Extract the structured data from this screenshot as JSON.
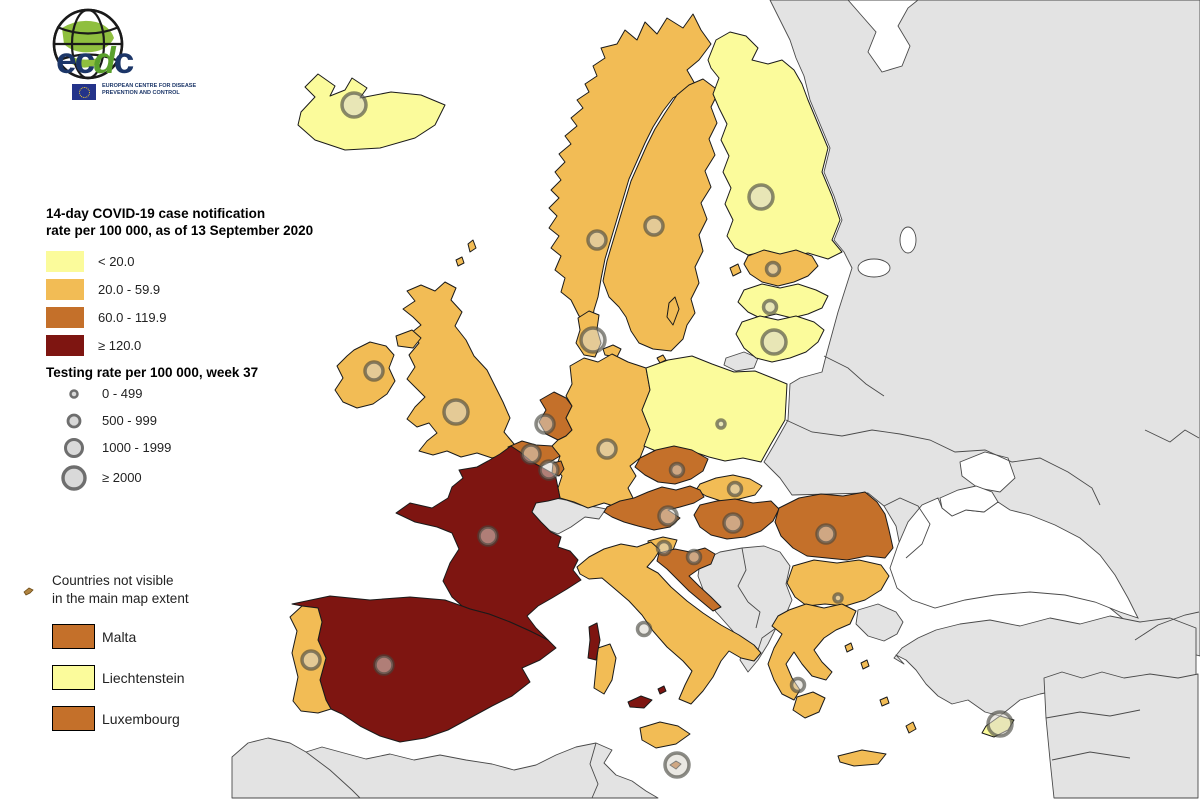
{
  "logo": {
    "wordmark_ec": "ec",
    "wordmark_d": "d",
    "wordmark_c": "c",
    "subtitle": "European Centre for Disease Prevention and Control"
  },
  "legend": {
    "title_line1": "14-day COVID-19 case notification",
    "title_line2": "rate per 100 000, as of 13 September 2020",
    "rate_classes": [
      {
        "key": "lt20",
        "label": "< 20.0",
        "color": "#FBFB9B"
      },
      {
        "key": "r20_59",
        "label": "20.0 - 59.9",
        "color": "#F2BC55"
      },
      {
        "key": "r60_119",
        "label": "60.0 - 119.9",
        "color": "#C4702A"
      },
      {
        "key": "gte120",
        "label": "≥ 120.0",
        "color": "#7E1511"
      }
    ],
    "testing_title": "Testing rate per 100 000, week 37",
    "testing_classes": [
      {
        "key": "t0",
        "label": "0 - 499",
        "radius": 3.5
      },
      {
        "key": "t500",
        "label": "500 - 999",
        "radius": 6
      },
      {
        "key": "t1000",
        "label": "1000 - 1999",
        "radius": 8.5
      },
      {
        "key": "t2000",
        "label": "≥ 2000",
        "radius": 11
      }
    ],
    "not_visible_line1": "Countries not visible",
    "not_visible_line2": "in the main map extent",
    "not_visible_countries": [
      {
        "name": "Malta",
        "rate_class": "r60_119"
      },
      {
        "name": "Liechtenstein",
        "rate_class": "lt20"
      },
      {
        "name": "Luxembourg",
        "rate_class": "r60_119"
      }
    ]
  },
  "map": {
    "sea_color": "#FFFFFF",
    "nonreporting_color": "#E3E3E3",
    "border_color": "#1a1a1a",
    "gray_border_color": "#4a4a4a",
    "circle": {
      "fill": "#D8D5CC",
      "fill_opacity": 0.55,
      "stroke": "#45453E",
      "stroke_opacity": 0.62,
      "stroke_width": 3.5,
      "radii": {
        "t0": 4,
        "t500": 6.5,
        "t1000": 9,
        "t2000": 12
      }
    },
    "countries": {
      "iceland": {
        "name": "Iceland",
        "rate_class": "lt20",
        "testing_class": "t2000"
      },
      "norway": {
        "name": "Norway",
        "rate_class": "r20_59",
        "testing_class": "t1000"
      },
      "sweden": {
        "name": "Sweden",
        "rate_class": "r20_59",
        "testing_class": "t1000"
      },
      "finland": {
        "name": "Finland",
        "rate_class": "lt20",
        "testing_class": "t2000"
      },
      "estonia": {
        "name": "Estonia",
        "rate_class": "r20_59",
        "testing_class": "t500"
      },
      "latvia": {
        "name": "Latvia",
        "rate_class": "lt20",
        "testing_class": "t500"
      },
      "lithuania": {
        "name": "Lithuania",
        "rate_class": "lt20",
        "testing_class": "t2000"
      },
      "denmark": {
        "name": "Denmark",
        "rate_class": "r20_59",
        "testing_class": "t2000"
      },
      "ireland": {
        "name": "Ireland",
        "rate_class": "r20_59",
        "testing_class": "t1000"
      },
      "uk": {
        "name": "United Kingdom",
        "rate_class": "r20_59",
        "testing_class": "t2000"
      },
      "netherlands": {
        "name": "Netherlands",
        "rate_class": "r60_119",
        "testing_class": "t1000"
      },
      "belgium": {
        "name": "Belgium",
        "rate_class": "r60_119",
        "testing_class": "t1000"
      },
      "luxembourg": {
        "name": "Luxembourg",
        "rate_class": "r60_119",
        "testing_class": "t1000"
      },
      "germany": {
        "name": "Germany",
        "rate_class": "r20_59",
        "testing_class": "t1000"
      },
      "poland": {
        "name": "Poland",
        "rate_class": "lt20",
        "testing_class": "t0"
      },
      "czechia": {
        "name": "Czechia",
        "rate_class": "r60_119",
        "testing_class": "t500"
      },
      "slovakia": {
        "name": "Slovakia",
        "rate_class": "r20_59",
        "testing_class": "t500"
      },
      "austria": {
        "name": "Austria",
        "rate_class": "r60_119",
        "testing_class": "t1000"
      },
      "hungary": {
        "name": "Hungary",
        "rate_class": "r60_119",
        "testing_class": "t1000"
      },
      "slovenia": {
        "name": "Slovenia",
        "rate_class": "r20_59",
        "testing_class": "t500"
      },
      "croatia": {
        "name": "Croatia",
        "rate_class": "r60_119",
        "testing_class": "t500"
      },
      "romania": {
        "name": "Romania",
        "rate_class": "r60_119",
        "testing_class": "t1000"
      },
      "bulgaria": {
        "name": "Bulgaria",
        "rate_class": "r20_59",
        "testing_class": "t0"
      },
      "greece": {
        "name": "Greece",
        "rate_class": "r20_59",
        "testing_class": "t500"
      },
      "italy": {
        "name": "Italy",
        "rate_class": "r20_59",
        "testing_class": "t500"
      },
      "france": {
        "name": "France",
        "rate_class": "gte120",
        "testing_class": "t1000"
      },
      "spain": {
        "name": "Spain",
        "rate_class": "gte120",
        "testing_class": "t1000"
      },
      "portugal": {
        "name": "Portugal",
        "rate_class": "r20_59",
        "testing_class": "t1000"
      },
      "malta": {
        "name": "Malta",
        "rate_class": "r60_119",
        "testing_class": "t2000"
      },
      "cyprus": {
        "name": "Cyprus",
        "rate_class": "lt20",
        "testing_class": "t2000"
      }
    }
  }
}
